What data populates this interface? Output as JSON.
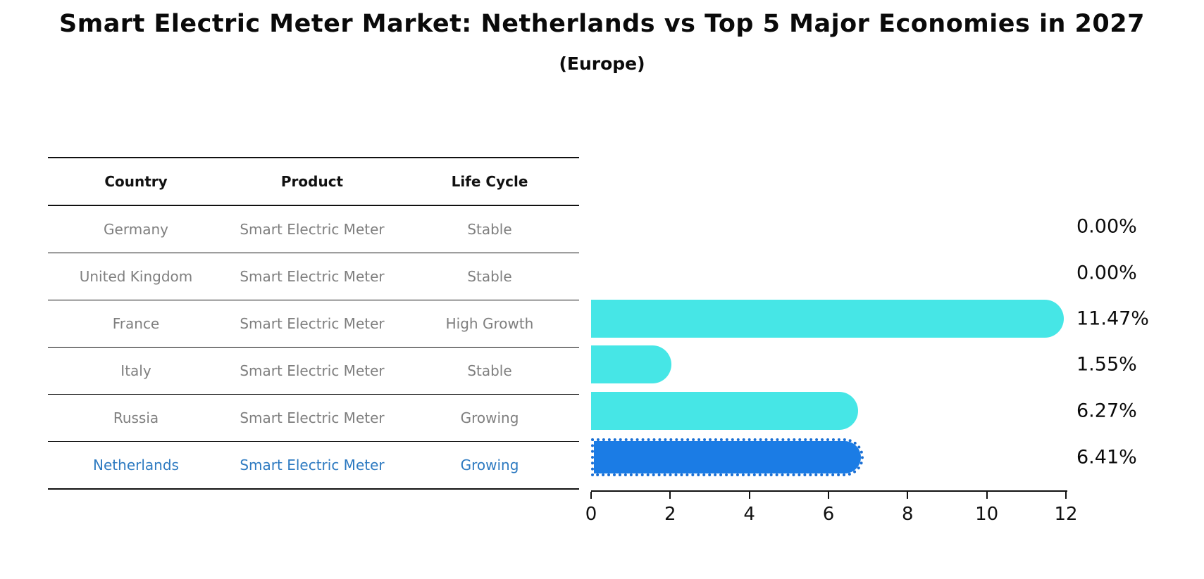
{
  "header": {
    "title": "Smart Electric Meter Market: Netherlands vs Top 5 Major Economies in 2027",
    "subtitle": "(Europe)"
  },
  "table": {
    "columns": [
      "Country",
      "Product",
      "Life Cycle"
    ],
    "rows": [
      {
        "country": "Germany",
        "product": "Smart Electric Meter",
        "life_cycle": "Stable",
        "highlight": false
      },
      {
        "country": "United Kingdom",
        "product": "Smart Electric Meter",
        "life_cycle": "Stable",
        "highlight": false
      },
      {
        "country": "France",
        "product": "Smart Electric Meter",
        "life_cycle": "High Growth",
        "highlight": false
      },
      {
        "country": "Italy",
        "product": "Smart Electric Meter",
        "life_cycle": "Stable",
        "highlight": false
      },
      {
        "country": "Russia",
        "product": "Smart Electric Meter",
        "life_cycle": "Growing",
        "highlight": false
      },
      {
        "country": "Netherlands",
        "product": "Smart Electric Meter",
        "life_cycle": "Growing",
        "highlight": true
      }
    ]
  },
  "chart_data": {
    "type": "bar",
    "orientation": "horizontal",
    "title": "Smart Electric Meter Market: Netherlands vs Top 5 Major Economies in 2027",
    "subtitle": "(Europe)",
    "categories": [
      "Germany",
      "United Kingdom",
      "France",
      "Italy",
      "Russia",
      "Netherlands"
    ],
    "values": [
      0.0,
      0.0,
      11.47,
      1.55,
      6.27,
      6.41
    ],
    "value_labels": [
      "0.00%",
      "0.00%",
      "11.47%",
      "1.55%",
      "6.27%",
      "6.41%"
    ],
    "xlim": [
      0,
      12
    ],
    "xticks": [
      0,
      2,
      4,
      6,
      8,
      10,
      12
    ],
    "grid": false,
    "legend": false,
    "highlight_category": "Netherlands",
    "bar_color": "#46E6E6",
    "highlight_bar_color": "#1B7CE5",
    "highlight_text_color": "#2d7ac1",
    "text_color_muted": "#7f7f7f"
  }
}
